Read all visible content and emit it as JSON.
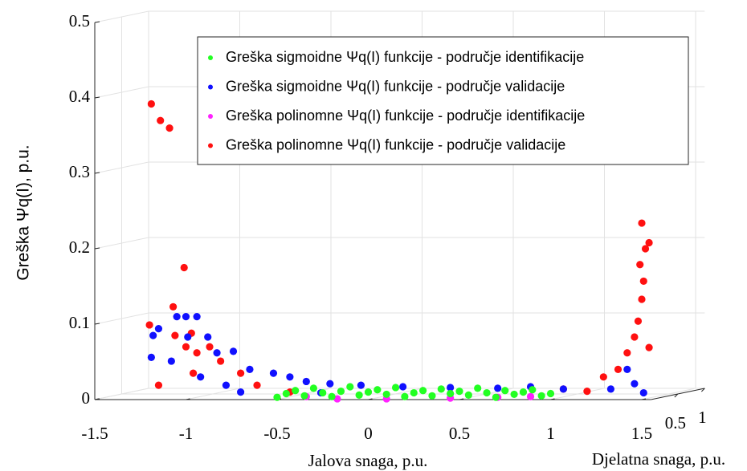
{
  "chart_data": {
    "type": "scatter3d",
    "xlabel": "Jalova snaga, p.u.",
    "ylabel": "Greška Ψq(I), p.u.",
    "zlabel": "Djelatna snaga, p.u.",
    "xlim": [
      -1.5,
      1.55
    ],
    "xticks": [
      -1.5,
      -1,
      -0.5,
      0,
      0.5,
      1,
      1.5
    ],
    "ylim": [
      0,
      0.5
    ],
    "yticks": [
      0,
      0.1,
      0.2,
      0.3,
      0.4,
      0.5
    ],
    "zlim": [
      0,
      1
    ],
    "zticks": [
      0.5,
      1
    ],
    "grid": true,
    "legend": "upper right",
    "series": [
      {
        "name": "Greška sigmoidne Ψq(I) funkcije - područje identifikacije",
        "color": "#22ff22",
        "x": [
          -0.5,
          -0.45,
          -0.4,
          -0.35,
          -0.3,
          -0.25,
          -0.2,
          -0.15,
          -0.1,
          -0.05,
          0,
          0.05,
          0.1,
          0.15,
          0.2,
          0.25,
          0.3,
          0.35,
          0.4,
          0.45,
          0.5,
          0.55,
          0.6,
          0.65,
          0.7,
          0.75,
          0.8,
          0.85,
          0.9,
          0.95,
          1
        ],
        "values": [
          0.003,
          0.008,
          0.012,
          0.005,
          0.015,
          0.009,
          0.004,
          0.011,
          0.017,
          0.006,
          0.01,
          0.013,
          0.007,
          0.016,
          0.004,
          0.009,
          0.012,
          0.005,
          0.014,
          0.008,
          0.011,
          0.006,
          0.015,
          0.009,
          0.003,
          0.012,
          0.007,
          0.01,
          0.013,
          0.005,
          0.008
        ]
      },
      {
        "name": "Greška sigmoidne Ψq(I) funkcije - područje validacije",
        "color": "#1010ff",
        "x": [
          -1.19,
          -1.18,
          -1.15,
          -1.08,
          -1.05,
          -1,
          -0.94,
          -0.99,
          -0.88,
          -0.83,
          -0.74,
          -0.92,
          -0.78,
          -0.65,
          -0.52,
          -0.43,
          -0.34,
          -0.21,
          -0.04,
          0.19,
          0.45,
          0.71,
          0.89,
          1.07,
          1.33,
          1.46,
          1.51,
          1.42,
          -0.7,
          -0.26
        ],
        "values": [
          0.056,
          0.085,
          0.094,
          0.051,
          0.11,
          0.11,
          0.11,
          0.083,
          0.083,
          0.062,
          0.064,
          0.03,
          0.019,
          0.04,
          0.035,
          0.03,
          0.024,
          0.021,
          0.019,
          0.017,
          0.016,
          0.015,
          0.017,
          0.014,
          0.014,
          0.021,
          0.009,
          0.04,
          0.01,
          0.009
        ]
      },
      {
        "name": "Greška polinomne Ψq(I) funkcije - područje identifikacije",
        "color": "#ff22ff",
        "x": [
          0.1,
          0.45,
          0.71,
          -0.34,
          0.89,
          -0.17
        ],
        "values": [
          0.001,
          0.002,
          0.003,
          0.004,
          0.004,
          0.001
        ]
      },
      {
        "name": "Greška polinomne Ψq(I) funkcije - područje validacije",
        "color": "#ff1010",
        "x": [
          -1.19,
          -1.14,
          -1.09,
          -1.01,
          -1.2,
          -1.07,
          -1.06,
          -1.15,
          -0.97,
          -0.94,
          -0.87,
          -0.81,
          -0.7,
          -0.61,
          -0.43,
          1.07,
          1.29,
          1.37,
          1.42,
          1.46,
          1.48,
          1.5,
          1.51,
          1.49,
          1.52,
          1.5,
          1.54,
          1.54,
          1.2,
          -0.96,
          -1
        ],
        "values": [
          0.392,
          0.37,
          0.36,
          0.175,
          0.099,
          0.123,
          0.085,
          0.019,
          0.088,
          0.062,
          0.07,
          0.051,
          0.035,
          0.019,
          0.01,
          0.014,
          0.03,
          0.04,
          0.062,
          0.083,
          0.104,
          0.133,
          0.157,
          0.179,
          0.2,
          0.234,
          0.208,
          0.069,
          0.011,
          0.035,
          0.07
        ]
      }
    ]
  }
}
